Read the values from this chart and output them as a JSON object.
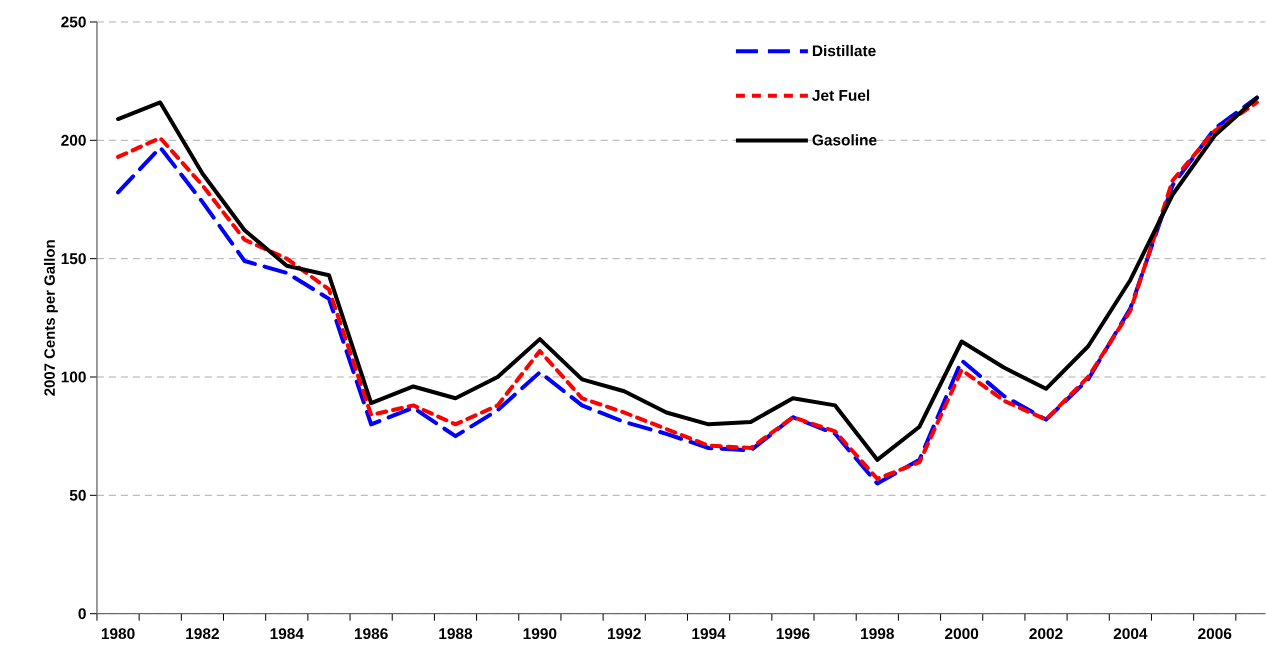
{
  "chart_data": {
    "type": "line",
    "ylabel": "2007 Cents per Gallon",
    "categories": [
      "1980",
      null,
      "1982",
      null,
      "1984",
      null,
      "1986",
      null,
      "1988",
      null,
      "1990",
      null,
      "1992",
      null,
      "1994",
      null,
      "1996",
      null,
      "1998",
      null,
      "2000",
      null,
      "2002",
      null,
      "2004",
      null,
      "2006",
      null
    ],
    "series": [
      {
        "name": "Distillate",
        "color": "#0000ff",
        "line_style": "dashed",
        "values": [
          178,
          197,
          174,
          149,
          144,
          133,
          80,
          87,
          75,
          86,
          102,
          88,
          81,
          76,
          70,
          69,
          83,
          76,
          55,
          65,
          107,
          92,
          82,
          99,
          129,
          181,
          205,
          218
        ]
      },
      {
        "name": "Jet Fuel",
        "color": "#ff0000",
        "line_style": "dotted",
        "values": [
          193,
          201,
          181,
          158,
          150,
          137,
          84,
          88,
          80,
          88,
          111,
          91,
          85,
          78,
          71,
          70,
          83,
          77,
          57,
          64,
          103,
          90,
          82,
          100,
          128,
          183,
          204,
          216
        ]
      },
      {
        "name": "Gasoline",
        "color": "#000000",
        "line_style": "solid",
        "values": [
          209,
          216,
          186,
          162,
          147,
          143,
          89,
          96,
          91,
          100,
          116,
          99,
          94,
          85,
          80,
          81,
          91,
          88,
          65,
          79,
          115,
          104,
          95,
          113,
          141,
          177,
          202,
          218
        ]
      }
    ],
    "ylim": [
      0,
      250
    ],
    "yticks": [
      0,
      50,
      100,
      150,
      200,
      250
    ],
    "grid": "y",
    "legend": "top right",
    "marker": "none"
  }
}
